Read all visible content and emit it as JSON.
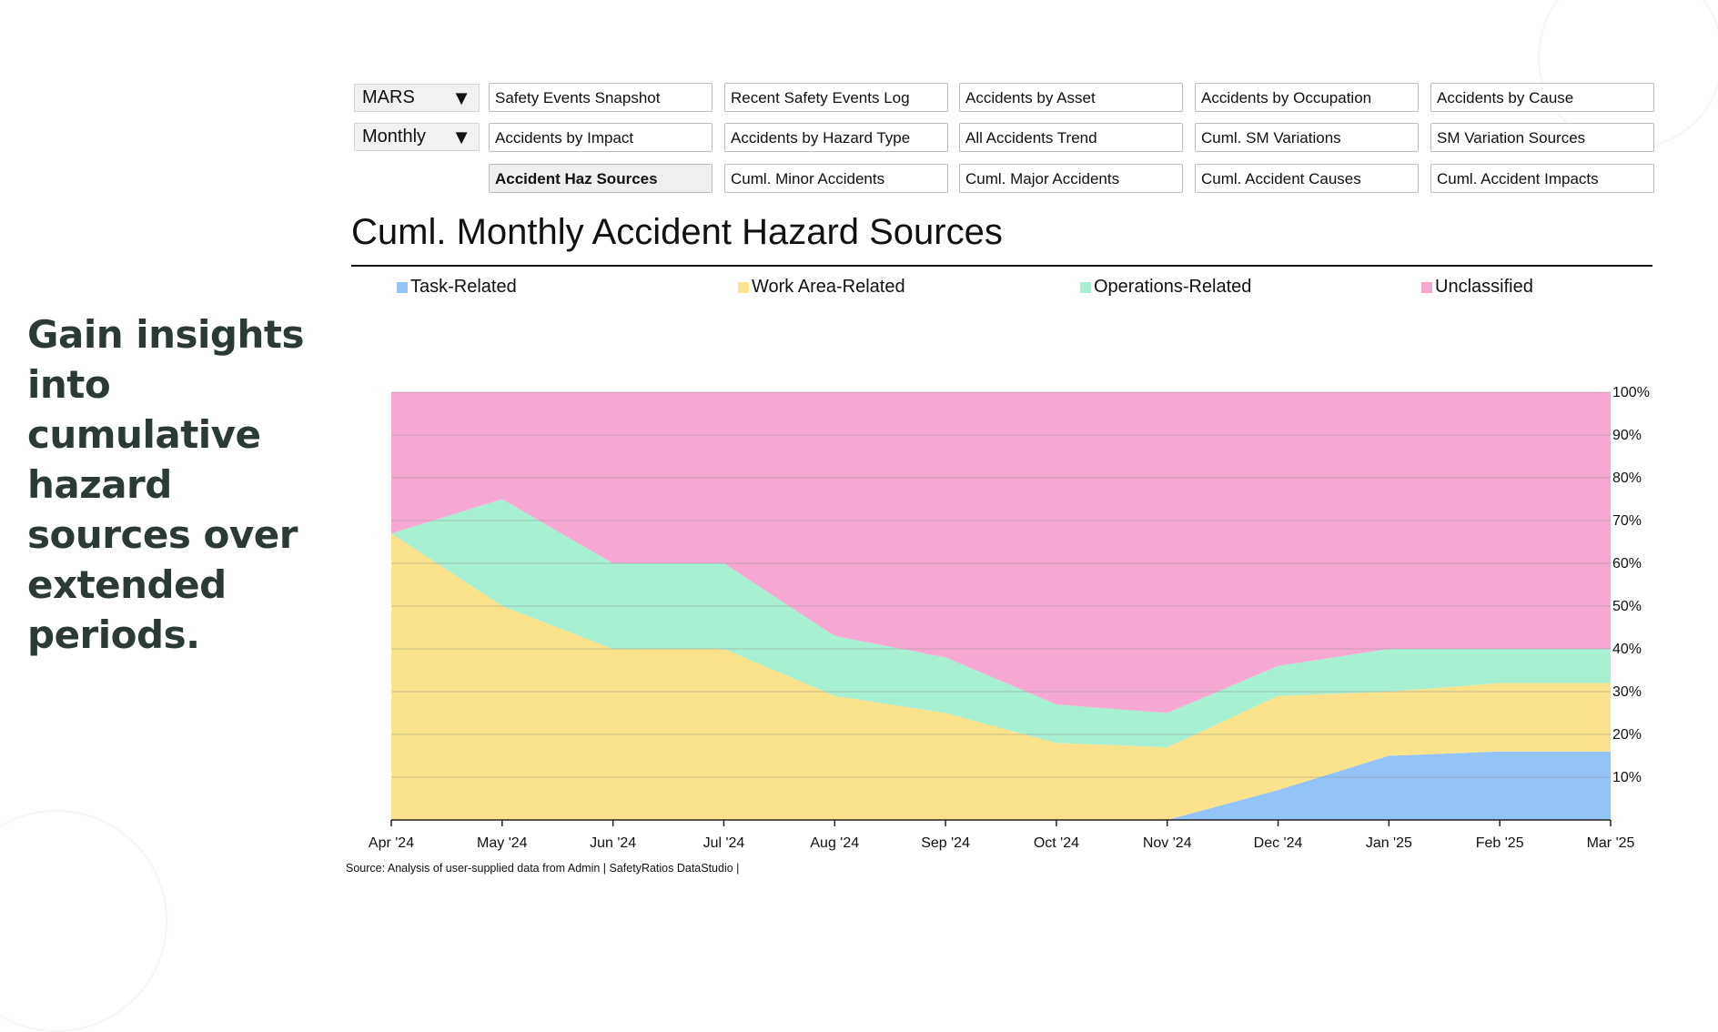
{
  "tagline": "Gain insights into cumulative hazard sources over extended periods.",
  "selects": [
    {
      "value": "MARS",
      "caret": "▼"
    },
    {
      "value": "Monthly",
      "caret": "▼"
    }
  ],
  "nav": {
    "row1": [
      "Safety Events Snapshot",
      "Recent Safety Events Log",
      "Accidents by Asset",
      "Accidents by Occupation",
      "Accidents by Cause"
    ],
    "row2": [
      "Accidents by Impact",
      "Accidents by Hazard Type",
      "All Accidents Trend",
      "Cuml. SM Variations",
      "SM Variation Sources"
    ],
    "row3": [
      "Accident Haz Sources",
      "Cuml. Minor Accidents",
      "Cuml. Major Accidents",
      "Cuml. Accident Causes",
      "Cuml. Accident Impacts"
    ],
    "active": "Accident Haz Sources"
  },
  "source": "Source: Analysis of user-supplied data from Admin | SafetyRatios DataStudio |",
  "chart_data": {
    "type": "area",
    "stacked": true,
    "normalized": true,
    "title": "Cuml. Monthly Accident Hazard Sources",
    "xlabel": "",
    "ylabel": "",
    "categories": [
      "Apr '24",
      "May '24",
      "Jun '24",
      "Jul '24",
      "Aug '24",
      "Sep '24",
      "Oct '24",
      "Nov '24",
      "Dec '24",
      "Jan '25",
      "Feb '25",
      "Mar '25"
    ],
    "series": [
      {
        "name": "Task-Related",
        "color": "#93c3f7",
        "values": [
          0,
          0,
          0,
          0,
          0,
          0,
          0,
          0,
          7,
          15,
          16,
          16
        ]
      },
      {
        "name": "Work Area-Related",
        "color": "#fbe28c",
        "values": [
          67,
          50,
          40,
          40,
          29,
          25,
          18,
          17,
          22,
          15,
          16,
          16
        ]
      },
      {
        "name": "Operations-Related",
        "color": "#a7f0d2",
        "values": [
          0,
          25,
          20,
          20,
          14,
          13,
          9,
          8,
          7,
          10,
          8,
          8
        ]
      },
      {
        "name": "Unclassified",
        "color": "#f7a8d2",
        "values": [
          33,
          25,
          40,
          40,
          57,
          62,
          73,
          75,
          64,
          60,
          60,
          60
        ]
      }
    ],
    "ylim": [
      0,
      100
    ],
    "yticks": [
      "10%",
      "20%",
      "30%",
      "40%",
      "50%",
      "60%",
      "70%",
      "80%",
      "90%",
      "100%"
    ],
    "yaxis_side": "right",
    "grid": true,
    "legend": "top"
  }
}
